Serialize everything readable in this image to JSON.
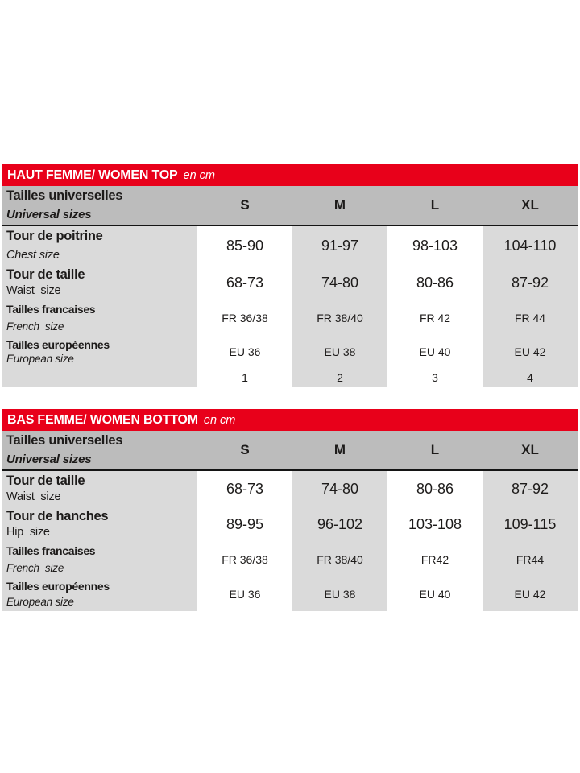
{
  "colors": {
    "accent_red": "#e8001a",
    "header_row_gray": "#bcbcbc",
    "cell_gray": "#dadada",
    "text_dark": "#1d1b1a",
    "title_text": "#ffffff"
  },
  "tables": [
    {
      "name": "women-top",
      "title": "HAUT FEMME/ WOMEN TOP",
      "unit": "en cm",
      "header": {
        "label_fr": "Tailles universelles",
        "label_en": "Universal sizes",
        "columns": [
          "S",
          "M",
          "L",
          "XL"
        ]
      },
      "rows": [
        {
          "label_fr": "Tour de poitrine",
          "label_en": "Chest size",
          "values": [
            "85-90",
            "91-97",
            "98-103",
            "104-110"
          ]
        },
        {
          "label_fr": "Tour de taille",
          "label_en": "Waist  size",
          "values": [
            "68-73",
            "74-80",
            "80-86",
            "87-92"
          ]
        },
        {
          "label_fr": "Tailles francaises",
          "label_en": "French  size",
          "values": [
            "FR 36/38",
            "FR 38/40",
            "FR 42",
            "FR 44"
          ]
        },
        {
          "label_fr": "Tailles européennes",
          "label_en": "European size",
          "values": [
            "EU 36",
            "EU 38",
            "EU 40",
            "EU 42"
          ]
        },
        {
          "label_fr": "",
          "label_en": "",
          "values": [
            "1",
            "2",
            "3",
            "4"
          ]
        }
      ]
    },
    {
      "name": "women-bottom",
      "title": "BAS FEMME/ WOMEN BOTTOM",
      "unit": "en cm",
      "header": {
        "label_fr": "Tailles universelles",
        "label_en": "Universal sizes",
        "columns": [
          "S",
          "M",
          "L",
          "XL"
        ]
      },
      "rows": [
        {
          "label_fr": "Tour de taille",
          "label_en": "Waist  size",
          "values": [
            "68-73",
            "74-80",
            "80-86",
            "87-92"
          ]
        },
        {
          "label_fr": "Tour de hanches",
          "label_en": "Hip  size",
          "values": [
            "89-95",
            "96-102",
            "103-108",
            "109-115"
          ]
        },
        {
          "label_fr": "Tailles francaises",
          "label_en": "French  size",
          "values": [
            "FR 36/38",
            "FR 38/40",
            "FR42",
            "FR44"
          ]
        },
        {
          "label_fr": "Tailles européennes",
          "label_en": "European size",
          "values": [
            "EU 36",
            "EU 38",
            "EU 40",
            "EU 42"
          ]
        }
      ]
    }
  ]
}
